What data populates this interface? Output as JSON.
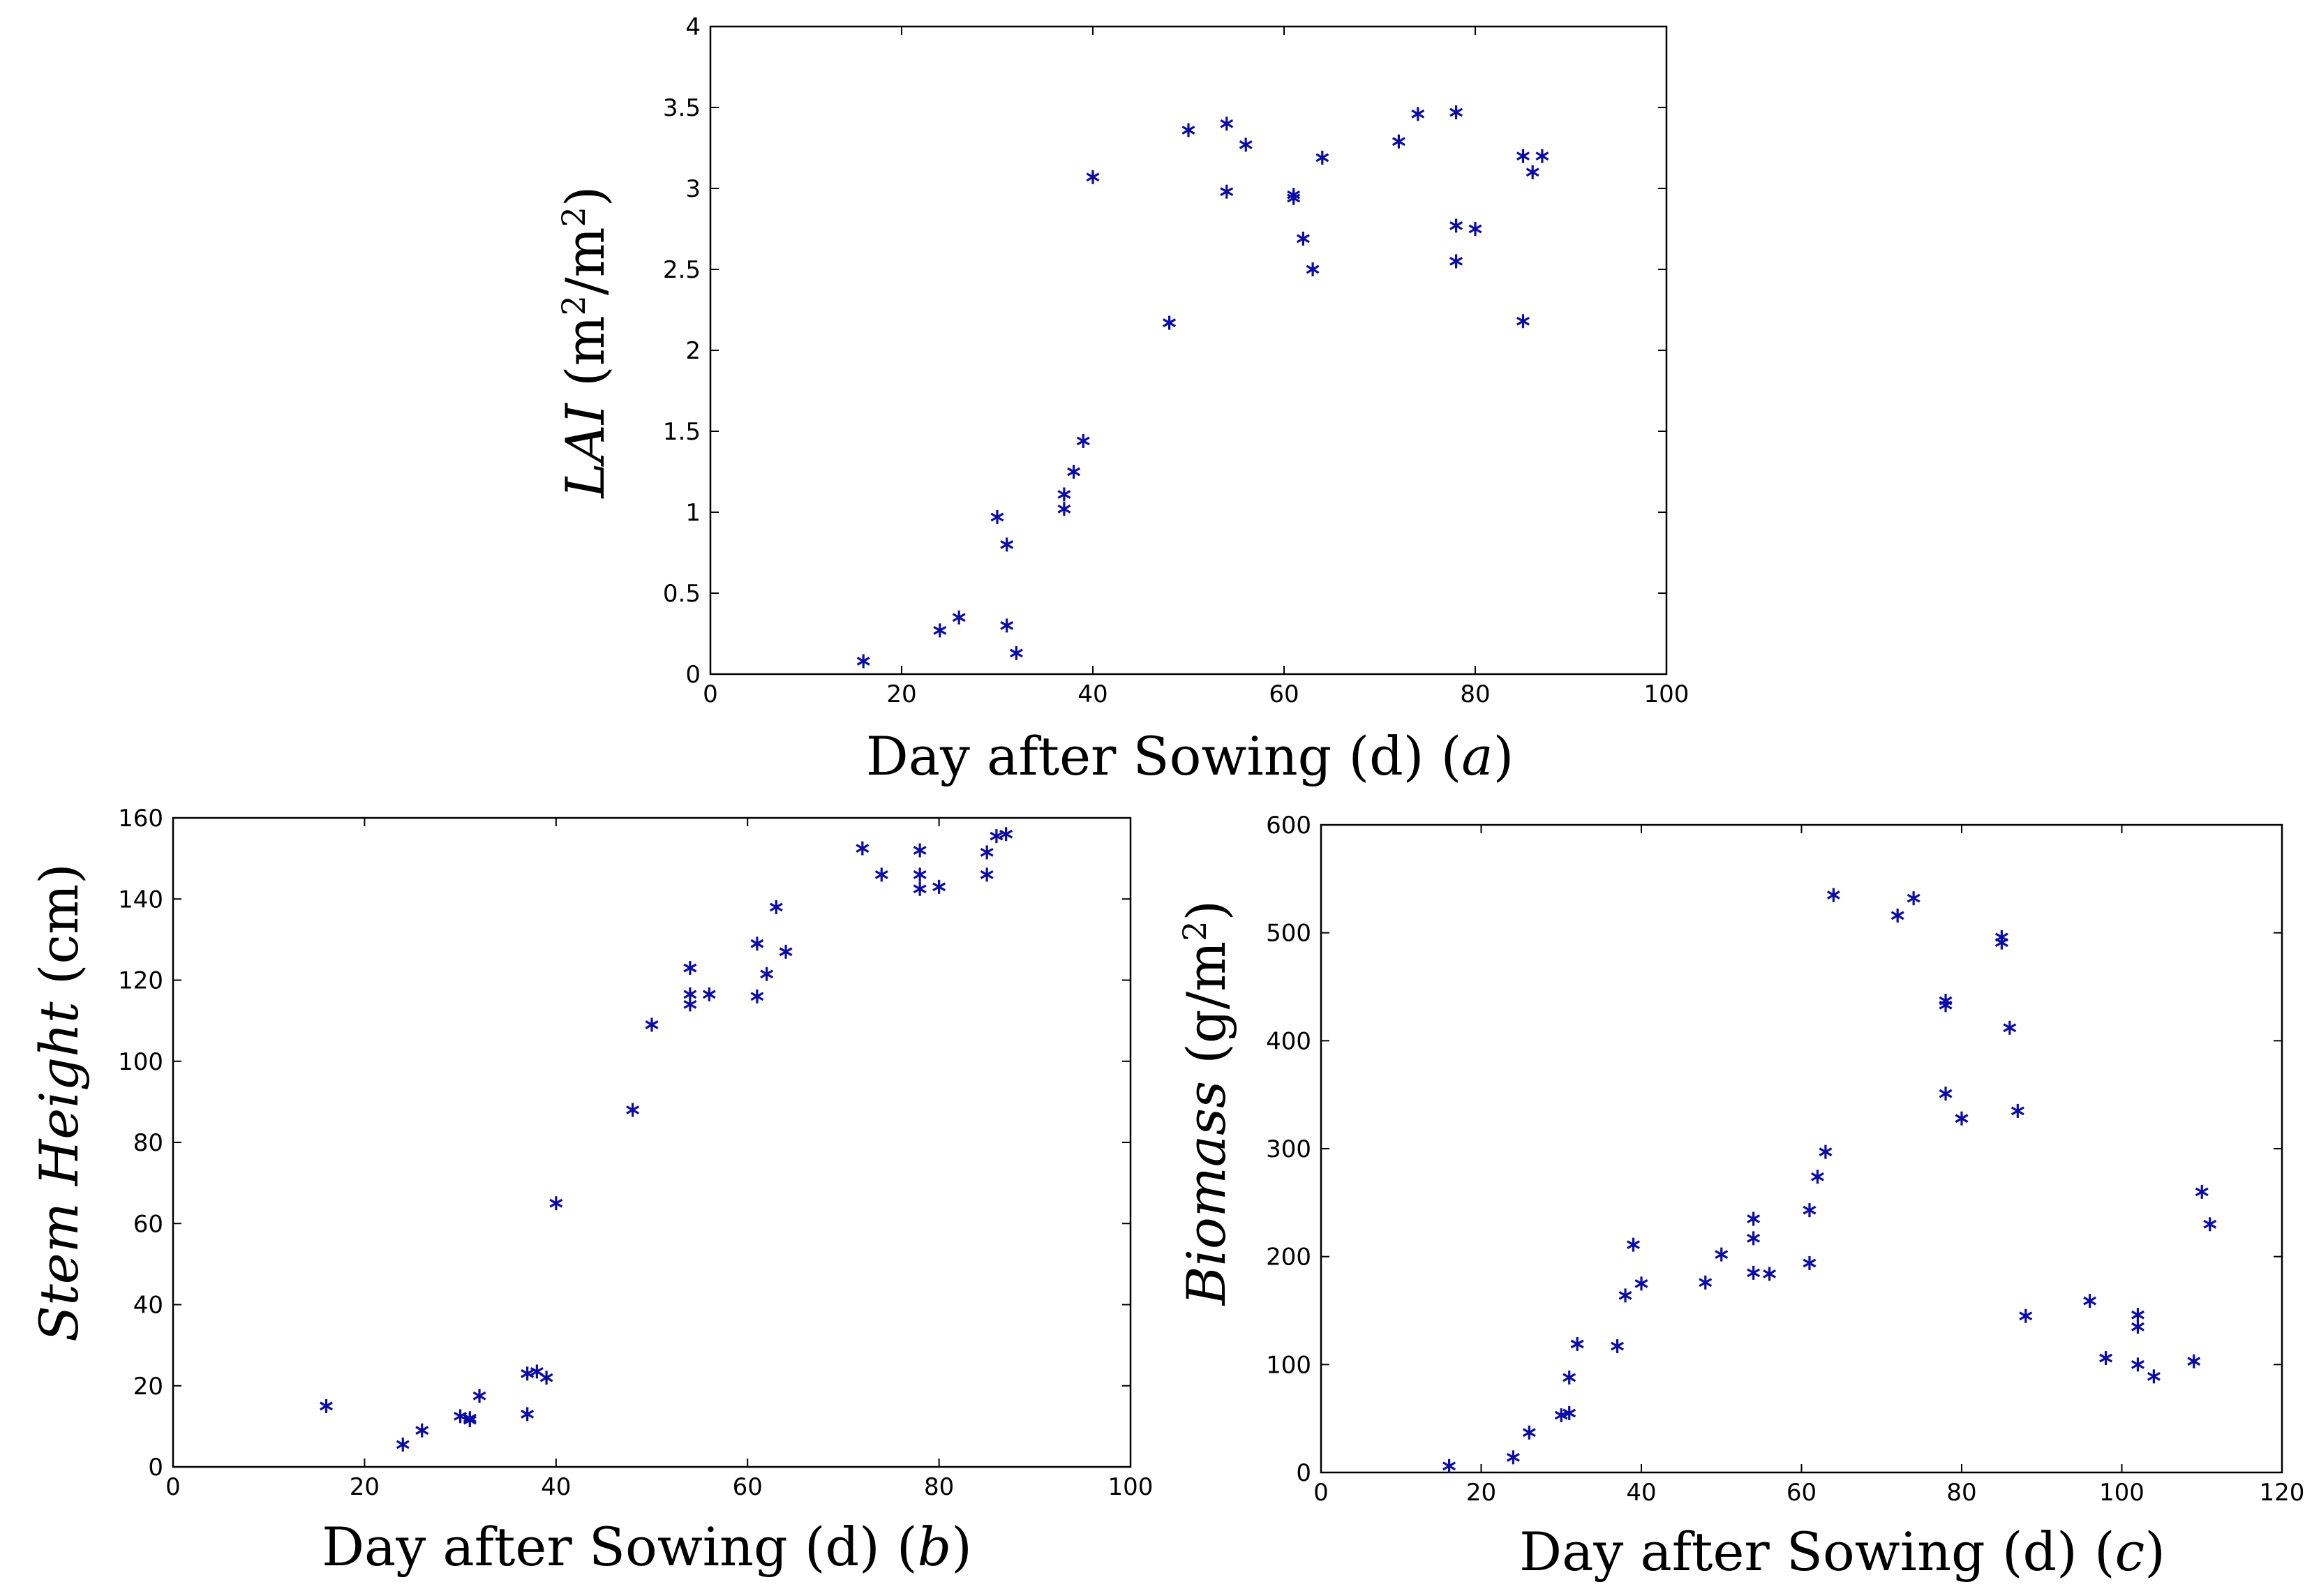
{
  "colors": {
    "marker": "#0a0aa6",
    "axis": "#000000",
    "background": "#ffffff"
  },
  "chart_data": [
    {
      "id": "a",
      "type": "scatter",
      "marker": "asterisk",
      "xlabel": "Day after Sowing (d) (a)",
      "xlabel_main": "Day after Sowing (d)",
      "panel_tag": "a",
      "ylabel": "LAI (m2/m2)",
      "ylabel_var": "LAI",
      "ylabel_unit": "m2/m2",
      "xlim": [
        0,
        100
      ],
      "ylim": [
        0,
        4
      ],
      "xticks": [
        0,
        20,
        40,
        60,
        80,
        100
      ],
      "xtick_labels": [
        "0",
        "20",
        "40",
        "60",
        "80",
        "100"
      ],
      "yticks": [
        0,
        0.5,
        1,
        1.5,
        2,
        2.5,
        3,
        3.5,
        4
      ],
      "ytick_labels": [
        "0",
        "0.5",
        "1",
        "1.5",
        "2",
        "2.5",
        "3",
        "3.5",
        "4"
      ],
      "points": [
        [
          16,
          0.08
        ],
        [
          24,
          0.27
        ],
        [
          26,
          0.35
        ],
        [
          30,
          0.97
        ],
        [
          31,
          0.8
        ],
        [
          31,
          0.3
        ],
        [
          32,
          0.13
        ],
        [
          37,
          1.02
        ],
        [
          37,
          1.11
        ],
        [
          38,
          1.25
        ],
        [
          39,
          1.44
        ],
        [
          40,
          3.07
        ],
        [
          48,
          2.17
        ],
        [
          50,
          3.36
        ],
        [
          54,
          3.4
        ],
        [
          54,
          2.98
        ],
        [
          56,
          3.27
        ],
        [
          61,
          2.94
        ],
        [
          61,
          2.96
        ],
        [
          62,
          2.69
        ],
        [
          63,
          2.5
        ],
        [
          64,
          3.19
        ],
        [
          72,
          3.29
        ],
        [
          74,
          3.46
        ],
        [
          78,
          3.47
        ],
        [
          78,
          2.77
        ],
        [
          78,
          2.55
        ],
        [
          80,
          2.75
        ],
        [
          85,
          3.2
        ],
        [
          85,
          2.18
        ],
        [
          86,
          3.1
        ],
        [
          87,
          3.2
        ]
      ]
    },
    {
      "id": "b",
      "type": "scatter",
      "marker": "asterisk",
      "xlabel": "Day after Sowing (d) (b)",
      "xlabel_main": "Day after Sowing (d)",
      "panel_tag": "b",
      "ylabel": "Stem Height (cm)",
      "ylabel_var": "Stem Height",
      "ylabel_unit": "cm",
      "xlim": [
        0,
        100
      ],
      "ylim": [
        0,
        160
      ],
      "xticks": [
        0,
        20,
        40,
        60,
        80,
        100
      ],
      "xtick_labels": [
        "0",
        "20",
        "40",
        "60",
        "80",
        "100"
      ],
      "yticks": [
        0,
        20,
        40,
        60,
        80,
        100,
        120,
        140,
        160
      ],
      "ytick_labels": [
        "0",
        "20",
        "40",
        "60",
        "80",
        "100",
        "120",
        "140",
        "160"
      ],
      "points": [
        [
          16,
          15
        ],
        [
          24,
          5.5
        ],
        [
          26,
          9
        ],
        [
          30,
          12.5
        ],
        [
          31,
          11.5
        ],
        [
          31,
          12
        ],
        [
          32,
          17.5
        ],
        [
          37,
          13
        ],
        [
          37,
          23
        ],
        [
          38,
          23.5
        ],
        [
          39,
          22
        ],
        [
          40,
          65
        ],
        [
          48,
          88
        ],
        [
          50,
          109
        ],
        [
          54,
          123
        ],
        [
          54,
          114
        ],
        [
          54,
          116.5
        ],
        [
          56,
          116.5
        ],
        [
          61,
          129
        ],
        [
          61,
          116
        ],
        [
          62,
          121.5
        ],
        [
          63,
          138
        ],
        [
          64,
          127
        ],
        [
          72,
          152.5
        ],
        [
          74,
          146
        ],
        [
          78,
          152
        ],
        [
          78,
          146
        ],
        [
          78,
          142.5
        ],
        [
          80,
          143
        ],
        [
          85,
          151.5
        ],
        [
          85,
          146
        ],
        [
          86,
          155.5
        ],
        [
          87,
          156
        ]
      ]
    },
    {
      "id": "c",
      "type": "scatter",
      "marker": "asterisk",
      "xlabel": "Day after Sowing (d) (c)",
      "xlabel_main": "Day after Sowing (d)",
      "panel_tag": "c",
      "ylabel": "Biomass (g/m2)",
      "ylabel_var": "Biomass",
      "ylabel_unit": "g/m2",
      "xlim": [
        0,
        120
      ],
      "ylim": [
        0,
        600
      ],
      "xticks": [
        0,
        20,
        40,
        60,
        80,
        100,
        120
      ],
      "xtick_labels": [
        "0",
        "20",
        "40",
        "60",
        "80",
        "100",
        "120"
      ],
      "yticks": [
        0,
        100,
        200,
        300,
        400,
        500,
        600
      ],
      "ytick_labels": [
        "0",
        "100",
        "200",
        "300",
        "400",
        "500",
        "600"
      ],
      "points": [
        [
          16,
          6
        ],
        [
          24,
          14
        ],
        [
          26,
          37
        ],
        [
          30,
          53
        ],
        [
          31,
          88
        ],
        [
          31,
          55
        ],
        [
          32,
          119
        ],
        [
          37,
          117
        ],
        [
          38,
          164
        ],
        [
          39,
          211
        ],
        [
          40,
          175
        ],
        [
          48,
          176
        ],
        [
          50,
          202
        ],
        [
          54,
          235
        ],
        [
          54,
          217
        ],
        [
          54,
          185
        ],
        [
          56,
          184
        ],
        [
          61,
          243
        ],
        [
          61,
          194
        ],
        [
          62,
          274
        ],
        [
          63,
          297
        ],
        [
          64,
          535
        ],
        [
          72,
          516
        ],
        [
          74,
          532
        ],
        [
          78,
          437
        ],
        [
          78,
          433
        ],
        [
          78,
          351
        ],
        [
          80,
          328
        ],
        [
          85,
          496
        ],
        [
          85,
          491
        ],
        [
          86,
          412
        ],
        [
          87,
          335
        ],
        [
          88,
          145
        ],
        [
          96,
          159
        ],
        [
          98,
          106
        ],
        [
          102,
          146
        ],
        [
          102,
          135
        ],
        [
          102,
          100
        ],
        [
          104,
          89
        ],
        [
          109,
          103
        ],
        [
          110,
          260
        ],
        [
          111,
          230
        ]
      ]
    }
  ]
}
